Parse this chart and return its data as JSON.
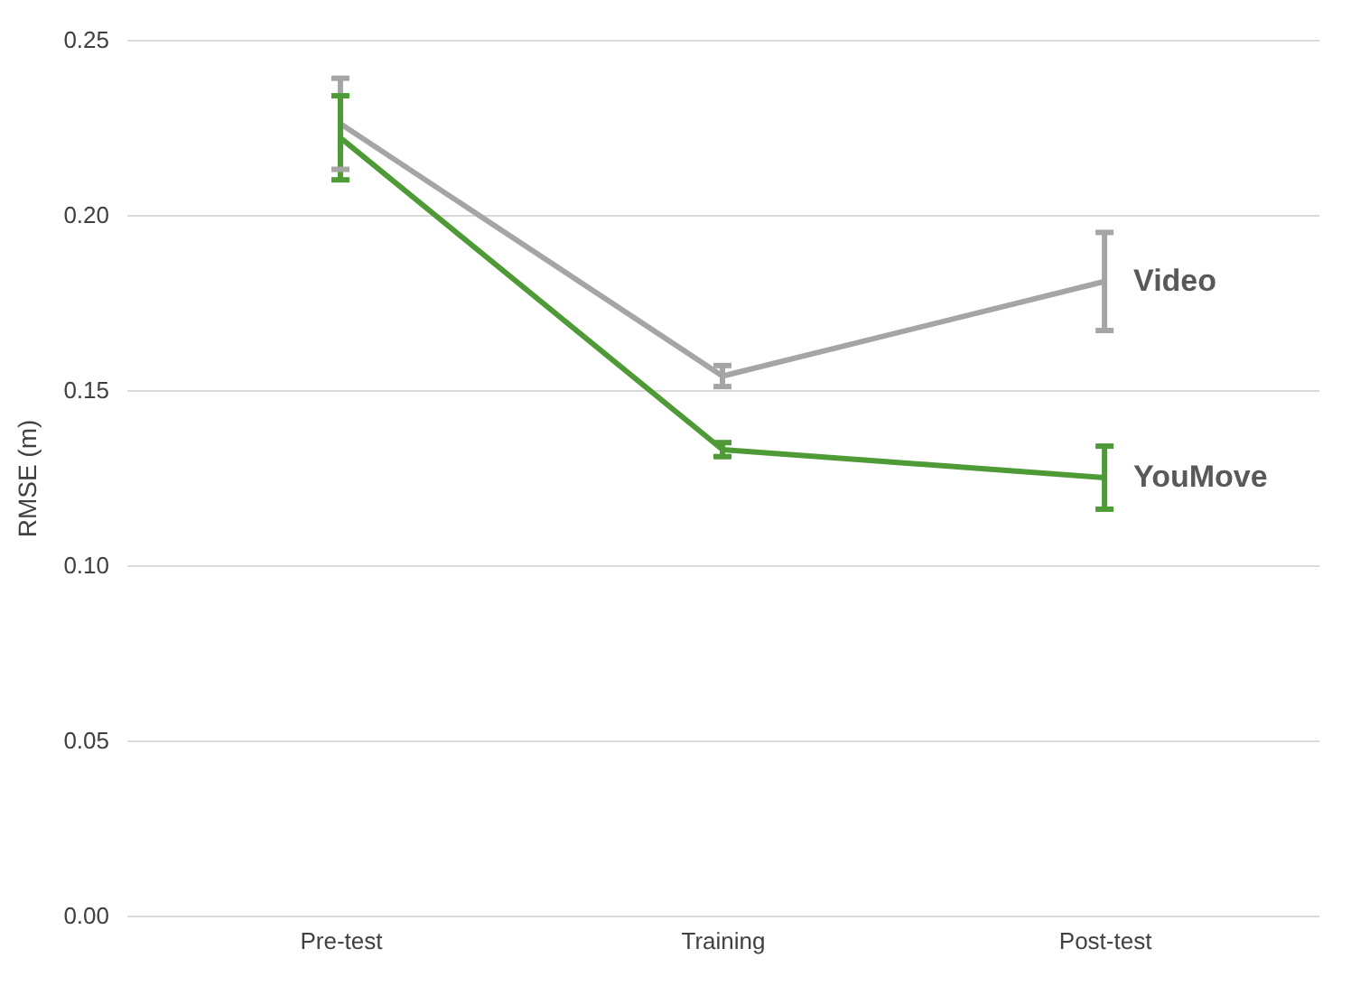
{
  "chart_data": {
    "type": "line",
    "ylabel": "RMSE (m)",
    "categories": [
      "Pre-test",
      "Training",
      "Post-test"
    ],
    "series": [
      {
        "name": "Video",
        "color": "#a5a5a5",
        "values": [
          0.226,
          0.154,
          0.181
        ],
        "errors": [
          0.013,
          0.003,
          0.014
        ]
      },
      {
        "name": "YouMove",
        "color": "#4e9a36",
        "values": [
          0.222,
          0.133,
          0.125
        ],
        "errors": [
          0.012,
          0.002,
          0.009
        ]
      }
    ],
    "ylim": [
      0,
      0.25
    ],
    "yticks": [
      {
        "value": 0,
        "label": "0.00"
      },
      {
        "value": 0.05,
        "label": "0.05"
      },
      {
        "value": 0.1,
        "label": "0.10"
      },
      {
        "value": 0.15,
        "label": "0.15"
      },
      {
        "value": 0.2,
        "label": "0.20"
      },
      {
        "value": 0.25,
        "label": "0.25"
      }
    ],
    "grid": "y",
    "legend": "right",
    "marker": "none",
    "line_style": "solid"
  }
}
